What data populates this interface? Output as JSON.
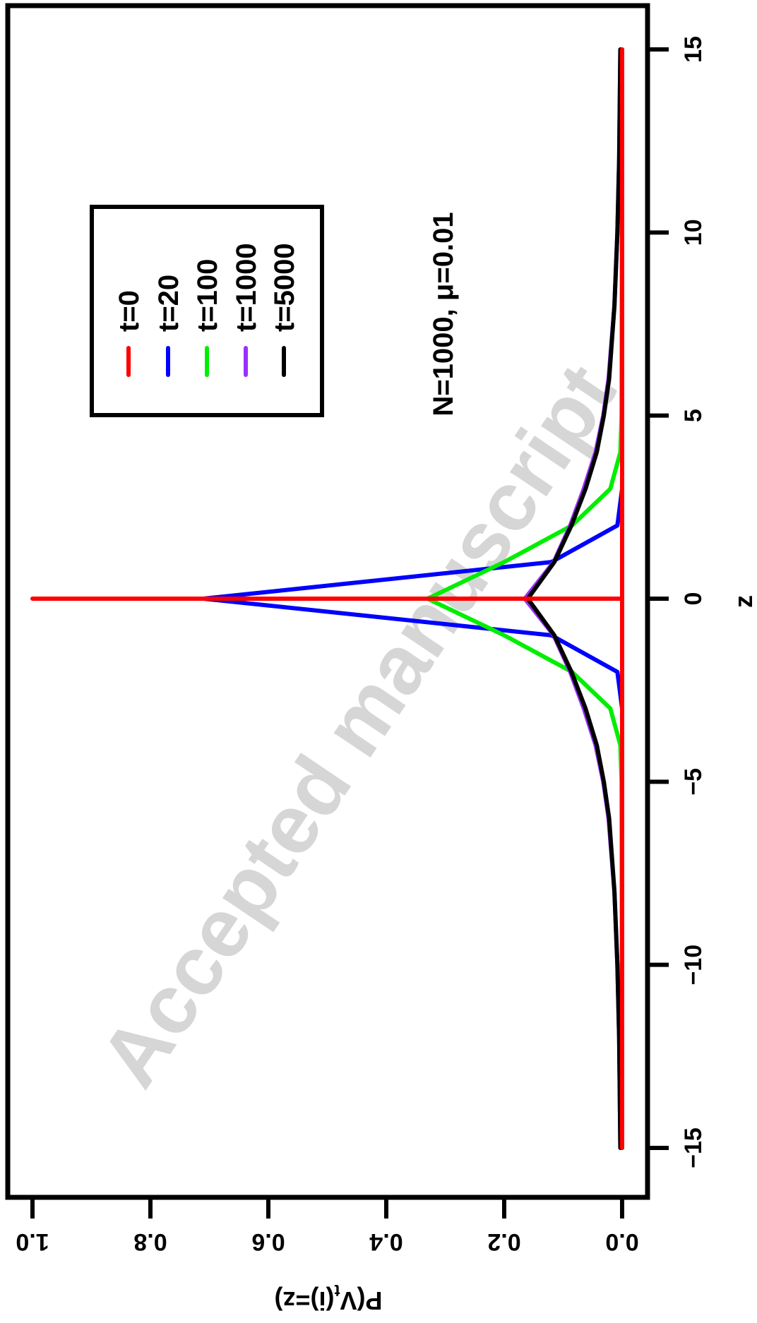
{
  "chart_data": {
    "type": "line",
    "rotation_deg": 90,
    "xlabel": "z",
    "ylabel": "P(V",
    "ylabel_sub": "t",
    "ylabel_suffix": "(i)=z)",
    "xlim": [
      -15,
      15
    ],
    "ylim": [
      0,
      1
    ],
    "x_ticks": [
      -15,
      -10,
      -5,
      0,
      5,
      10,
      15
    ],
    "x_tick_labels": [
      "−15",
      "−10",
      "−5",
      "0",
      "5",
      "10",
      "15"
    ],
    "y_ticks": [
      0,
      0.2,
      0.4,
      0.6,
      0.8,
      1.0
    ],
    "y_tick_labels": [
      "0.0",
      "0.2",
      "0.4",
      "0.6",
      "0.8",
      "1.0"
    ],
    "annotation": "N=1000, μ=0.01",
    "legend_position": "top-left",
    "watermark": "Accepted manuscript",
    "series": [
      {
        "name": "t=0",
        "color": "#ff0000",
        "x": [
          -15,
          -1,
          0,
          0,
          0,
          1,
          15
        ],
        "y": [
          0,
          0,
          0,
          1,
          0,
          0,
          0
        ]
      },
      {
        "name": "t=20",
        "color": "#0000ff",
        "x": [
          -15,
          -3,
          -2,
          -1,
          0,
          1,
          2,
          3,
          15
        ],
        "y": [
          0,
          0,
          0.008,
          0.12,
          0.71,
          0.12,
          0.008,
          0,
          0
        ]
      },
      {
        "name": "t=100",
        "color": "#00ee00",
        "x": [
          -15,
          -5,
          -4,
          -3,
          -2,
          -1,
          0,
          1,
          2,
          3,
          4,
          5,
          15
        ],
        "y": [
          0,
          0.001,
          0.003,
          0.02,
          0.085,
          0.2,
          0.33,
          0.2,
          0.085,
          0.02,
          0.003,
          0.001,
          0
        ]
      },
      {
        "name": "t=1000",
        "color": "#9b30ff",
        "x": [
          -15,
          -12,
          -10,
          -8,
          -6,
          -5,
          -4,
          -3,
          -2,
          -1,
          0,
          1,
          2,
          3,
          4,
          5,
          6,
          8,
          10,
          12,
          15
        ],
        "y": [
          0.003,
          0.005,
          0.008,
          0.013,
          0.023,
          0.032,
          0.045,
          0.065,
          0.088,
          0.116,
          0.165,
          0.116,
          0.088,
          0.065,
          0.045,
          0.032,
          0.023,
          0.013,
          0.008,
          0.005,
          0.003
        ]
      },
      {
        "name": "t=5000",
        "color": "#000000",
        "x": [
          -15,
          -12,
          -10,
          -8,
          -6,
          -5,
          -4,
          -3,
          -2,
          -1,
          0,
          1,
          2,
          3,
          4,
          5,
          6,
          8,
          10,
          12,
          15
        ],
        "y": [
          0.003,
          0.005,
          0.008,
          0.013,
          0.022,
          0.031,
          0.043,
          0.062,
          0.086,
          0.115,
          0.16,
          0.115,
          0.086,
          0.062,
          0.043,
          0.031,
          0.022,
          0.013,
          0.008,
          0.005,
          0.003
        ]
      }
    ]
  }
}
